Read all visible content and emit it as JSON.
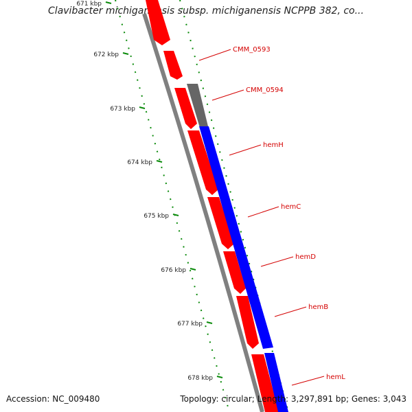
{
  "header": {
    "title": "Clavibacter michiganensis subsp. michiganensis NCPPB 382, co..."
  },
  "footer": {
    "accession": "Accession: NC_009480",
    "stats": "Topology: circular; Length: 3,297,891 bp; Genes: 3,043"
  },
  "colors": {
    "forward_gene": "#ff0000",
    "reverse_gene": "#0000ff",
    "other_gene": "#666666",
    "backbone": "#808080",
    "tick": "#0a8a0a",
    "label": "#d40000"
  },
  "scale": {
    "ticks": [
      {
        "label": "671 kbp"
      },
      {
        "label": "672 kbp"
      },
      {
        "label": "673 kbp"
      },
      {
        "label": "674 kbp"
      },
      {
        "label": "675 kbp"
      },
      {
        "label": "676 kbp"
      },
      {
        "label": "677 kbp"
      },
      {
        "label": "678 kbp"
      }
    ]
  },
  "genes": [
    {
      "name": "CMM_0593"
    },
    {
      "name": "CMM_0594"
    },
    {
      "name": "hemH"
    },
    {
      "name": "hemC"
    },
    {
      "name": "hemD"
    },
    {
      "name": "hemB"
    },
    {
      "name": "hemL"
    }
  ]
}
